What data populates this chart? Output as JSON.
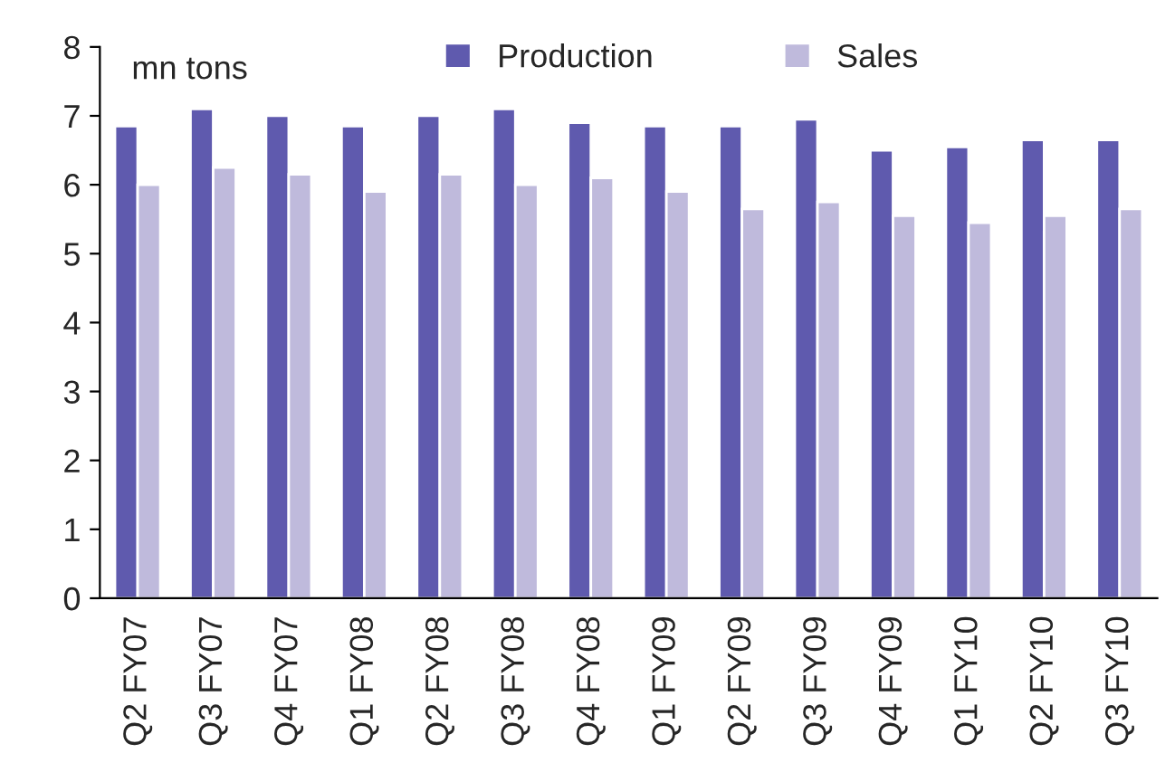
{
  "chart_data": {
    "type": "bar",
    "annotations": [
      "mn tons"
    ],
    "categories": [
      "Q2 FY07",
      "Q3 FY07",
      "Q4 FY07",
      "Q1 FY08",
      "Q2 FY08",
      "Q3 FY08",
      "Q4 FY08",
      "Q1 FY09",
      "Q2 FY09",
      "Q3 FY09",
      "Q4 FY09",
      "Q1 FY10",
      "Q2 FY10",
      "Q3 FY10"
    ],
    "series": [
      {
        "name": "Production",
        "color": "#5f5aae",
        "values": [
          6.85,
          7.1,
          7.0,
          6.85,
          7.0,
          7.1,
          6.9,
          6.85,
          6.85,
          6.95,
          6.5,
          6.55,
          6.65,
          6.65
        ]
      },
      {
        "name": "Sales",
        "color": "#bfbadc",
        "values": [
          6.0,
          6.25,
          6.15,
          5.9,
          6.15,
          6.0,
          6.1,
          5.9,
          5.65,
          5.75,
          5.55,
          5.45,
          5.55,
          5.65
        ]
      }
    ],
    "ylim": [
      0,
      8
    ],
    "yticks": [
      0,
      1,
      2,
      3,
      4,
      5,
      6,
      7,
      8
    ],
    "grid": false,
    "legend": "top"
  }
}
